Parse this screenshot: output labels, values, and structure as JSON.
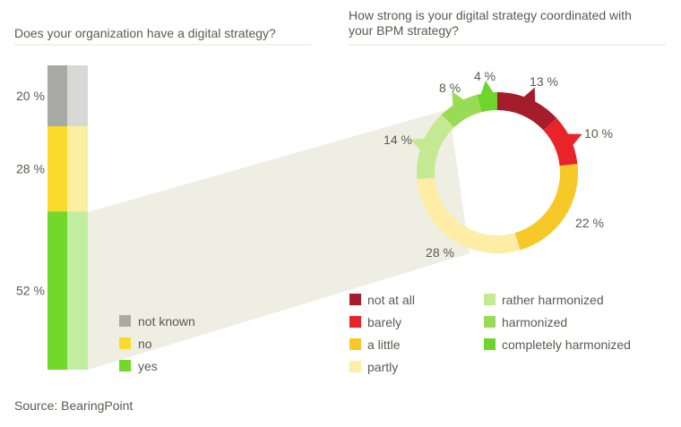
{
  "chart_data": [
    {
      "type": "bar",
      "stacked": true,
      "title": "Does your organization have a digital strategy?",
      "series": [
        {
          "name": "not known",
          "value": 20,
          "label": "20 %",
          "color": "#a9aaa6"
        },
        {
          "name": "no",
          "value": 28,
          "label": "28 %",
          "color": "#fadb2b"
        },
        {
          "name": "yes",
          "value": 52,
          "label": "52 %",
          "color": "#72d92c"
        }
      ],
      "legend_position": "bottom-right"
    },
    {
      "type": "pie",
      "donut": true,
      "title": "How strong is your digital strategy coordinated with your BPM strategy?",
      "slices": [
        {
          "name": "not at all",
          "value": 13,
          "label": "13 %",
          "color": "#a51c2b"
        },
        {
          "name": "barely",
          "value": 10,
          "label": "10 %",
          "color": "#e8242a"
        },
        {
          "name": "a little",
          "value": 22,
          "label": "22 %",
          "color": "#f6c928"
        },
        {
          "name": "partly",
          "value": 28,
          "label": "28 %",
          "color": "#fdeda6"
        },
        {
          "name": "rather harmonized",
          "value": 14,
          "label": "14 %",
          "color": "#c5e992"
        },
        {
          "name": "harmonized",
          "value": 8,
          "label": "8 %",
          "color": "#99db55"
        },
        {
          "name": "completely harmonized",
          "value": 4,
          "label": "4 %",
          "color": "#6cd62c"
        }
      ],
      "legend_position": "bottom"
    }
  ],
  "source": "Source: BearingPoint"
}
